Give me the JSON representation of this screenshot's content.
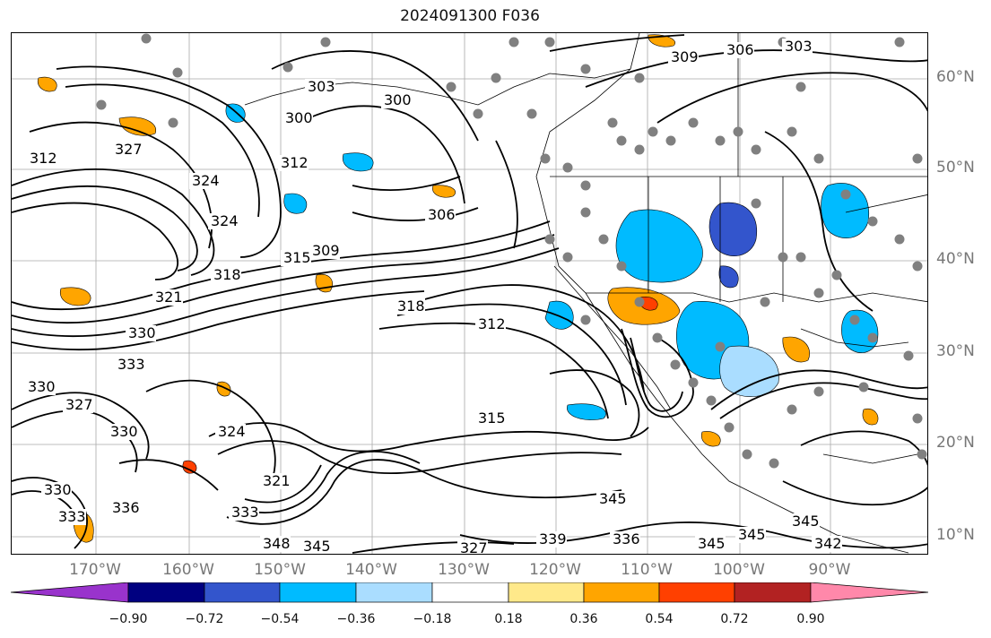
{
  "title": "2024091300 F036",
  "map": {
    "lat_labels": [
      "60°N",
      "50°N",
      "40°N",
      "30°N",
      "20°N",
      "10°N"
    ],
    "lon_labels": [
      "170°W",
      "160°W",
      "150°W",
      "140°W",
      "130°W",
      "120°W",
      "110°W",
      "100°W",
      "90°W"
    ],
    "contour_labels": [
      "303",
      "309",
      "306",
      "303",
      "300",
      "300",
      "306",
      "312",
      "324",
      "324",
      "312",
      "327",
      "309",
      "315",
      "321",
      "318",
      "318",
      "312",
      "330",
      "333",
      "327",
      "330",
      "324",
      "321",
      "333",
      "315",
      "348",
      "345",
      "345",
      "345",
      "345",
      "345",
      "342",
      "336",
      "339",
      "327",
      "330",
      "336",
      "330",
      "333"
    ],
    "overlay_colors": {
      "contour": "#000000",
      "coast": "#000000",
      "borders": "#000000",
      "grid": "#a9a9a9",
      "dots": "#808080"
    }
  },
  "colorbar": {
    "tick_labels": [
      "−0.90",
      "−0.72",
      "−0.54",
      "−0.36",
      "−0.18",
      "0.18",
      "0.36",
      "0.54",
      "0.72",
      "0.90"
    ],
    "colors": [
      "#9933cc",
      "#000080",
      "#3355cc",
      "#00bbff",
      "#aaddff",
      "#ffffff",
      "#ffe98a",
      "#ffa500",
      "#ff4000",
      "#b22222",
      "#ff88aa"
    ]
  }
}
